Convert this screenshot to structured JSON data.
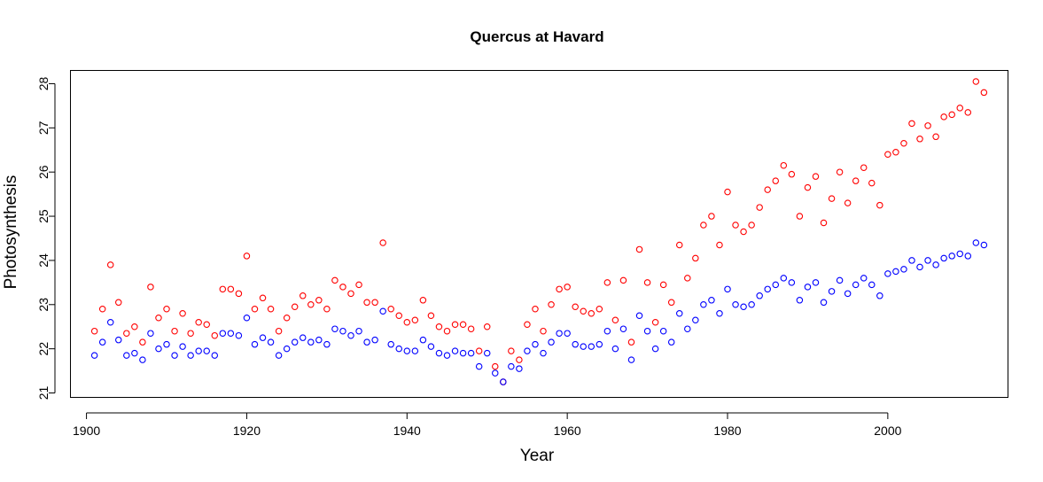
{
  "chart_data": {
    "type": "scatter",
    "title": "Quercus at Havard",
    "xlabel": "Year",
    "ylabel": "Photosynthesis",
    "xlim": [
      1898,
      2015
    ],
    "ylim": [
      20.9,
      28.3
    ],
    "xticks": [
      1900,
      1920,
      1940,
      1960,
      1980,
      2000
    ],
    "yticks": [
      21,
      22,
      23,
      24,
      25,
      26,
      27,
      28
    ],
    "grid": false,
    "legend": "none",
    "x": [
      1901,
      1902,
      1903,
      1904,
      1905,
      1906,
      1907,
      1908,
      1909,
      1910,
      1911,
      1912,
      1913,
      1914,
      1915,
      1916,
      1917,
      1918,
      1919,
      1920,
      1921,
      1922,
      1923,
      1924,
      1925,
      1926,
      1927,
      1928,
      1929,
      1930,
      1931,
      1932,
      1933,
      1934,
      1935,
      1936,
      1937,
      1938,
      1939,
      1940,
      1941,
      1942,
      1943,
      1944,
      1945,
      1946,
      1947,
      1948,
      1949,
      1950,
      1951,
      1952,
      1953,
      1954,
      1955,
      1956,
      1957,
      1958,
      1959,
      1960,
      1961,
      1962,
      1963,
      1964,
      1965,
      1966,
      1967,
      1968,
      1969,
      1970,
      1971,
      1972,
      1973,
      1974,
      1975,
      1976,
      1977,
      1978,
      1979,
      1980,
      1981,
      1982,
      1983,
      1984,
      1985,
      1986,
      1987,
      1988,
      1989,
      1990,
      1991,
      1992,
      1993,
      1994,
      1995,
      1996,
      1997,
      1998,
      1999,
      2000,
      2001,
      2002,
      2003,
      2004,
      2005,
      2006,
      2007,
      2008,
      2009,
      2010,
      2011,
      2012
    ],
    "series": [
      {
        "color": "#ff0000",
        "values": [
          22.4,
          22.9,
          23.9,
          23.05,
          22.35,
          22.5,
          22.15,
          23.4,
          22.7,
          22.9,
          22.4,
          22.8,
          22.35,
          22.6,
          22.55,
          22.3,
          23.35,
          23.35,
          23.25,
          24.1,
          22.9,
          23.15,
          22.9,
          22.4,
          22.7,
          22.95,
          23.2,
          23.0,
          23.1,
          22.9,
          23.55,
          23.4,
          23.25,
          23.45,
          23.05,
          23.05,
          24.4,
          22.9,
          22.75,
          22.6,
          22.65,
          23.1,
          22.75,
          22.5,
          22.4,
          22.55,
          22.55,
          22.45,
          21.95,
          22.5,
          21.6,
          21.25,
          21.95,
          21.75,
          22.55,
          22.9,
          22.4,
          23.0,
          23.35,
          23.4,
          22.95,
          22.85,
          22.8,
          22.9,
          23.5,
          22.65,
          23.55,
          22.15,
          24.25,
          23.5,
          22.6,
          23.45,
          23.05,
          24.35,
          23.6,
          24.05,
          24.8,
          25.0,
          24.35,
          25.55,
          24.8,
          24.65,
          24.8,
          25.2,
          25.6,
          25.8,
          26.15,
          25.95,
          25.0,
          25.65,
          25.9,
          24.85,
          25.4,
          26.0,
          25.3,
          25.8,
          26.1,
          25.75,
          25.25,
          26.4,
          26.45,
          26.65,
          27.1,
          26.75,
          27.05,
          26.8,
          27.25,
          27.3,
          27.45,
          27.35,
          28.05,
          27.8
        ]
      },
      {
        "color": "#0000ff",
        "values": [
          21.85,
          22.15,
          22.6,
          22.2,
          21.85,
          21.9,
          21.75,
          22.35,
          22.0,
          22.1,
          21.85,
          22.05,
          21.85,
          21.95,
          21.95,
          21.85,
          22.35,
          22.35,
          22.3,
          22.7,
          22.1,
          22.25,
          22.15,
          21.85,
          22.0,
          22.15,
          22.25,
          22.15,
          22.2,
          22.1,
          22.45,
          22.4,
          22.3,
          22.4,
          22.15,
          22.2,
          22.85,
          22.1,
          22.0,
          21.95,
          21.95,
          22.2,
          22.05,
          21.9,
          21.85,
          21.95,
          21.9,
          21.9,
          21.6,
          21.9,
          21.45,
          21.25,
          21.6,
          21.55,
          21.95,
          22.1,
          21.9,
          22.15,
          22.35,
          22.35,
          22.1,
          22.05,
          22.05,
          22.1,
          22.4,
          22.0,
          22.45,
          21.75,
          22.75,
          22.4,
          22.0,
          22.4,
          22.15,
          22.8,
          22.45,
          22.65,
          23.0,
          23.1,
          22.8,
          23.35,
          23.0,
          22.95,
          23.0,
          23.2,
          23.35,
          23.45,
          23.6,
          23.5,
          23.1,
          23.4,
          23.5,
          23.05,
          23.3,
          23.55,
          23.25,
          23.45,
          23.6,
          23.45,
          23.2,
          23.7,
          23.75,
          23.8,
          24.0,
          23.85,
          24.0,
          23.9,
          24.05,
          24.1,
          24.15,
          24.1,
          24.4,
          24.35
        ]
      }
    ]
  }
}
